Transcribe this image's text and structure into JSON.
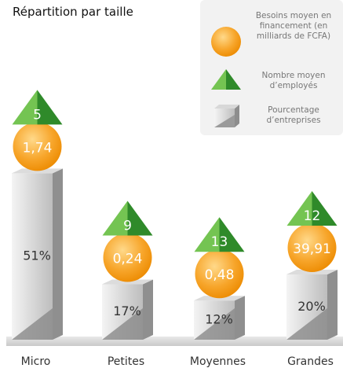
{
  "chart_data": {
    "type": "bar",
    "title": "Répartition par taille",
    "categories": [
      "Micro",
      "Petites",
      "Moyennes",
      "Grandes"
    ],
    "series": [
      {
        "name": "Besoins moyen en financement (en milliards de FCFA)",
        "color": "#f5a11f",
        "values": [
          1.74,
          0.24,
          0.48,
          39.91
        ],
        "value_labels": [
          "1,74",
          "0,24",
          "0,48",
          "39,91"
        ]
      },
      {
        "name": "Nombre moyen d’employés",
        "color": "#3f9f2f",
        "values": [
          5,
          9,
          13,
          12
        ]
      },
      {
        "name": "Pourcentage d’entreprises",
        "color": "#b5b5b5",
        "values": [
          51,
          17,
          12,
          20
        ],
        "value_labels": [
          "51%",
          "17%",
          "12%",
          "20%"
        ]
      }
    ]
  }
}
